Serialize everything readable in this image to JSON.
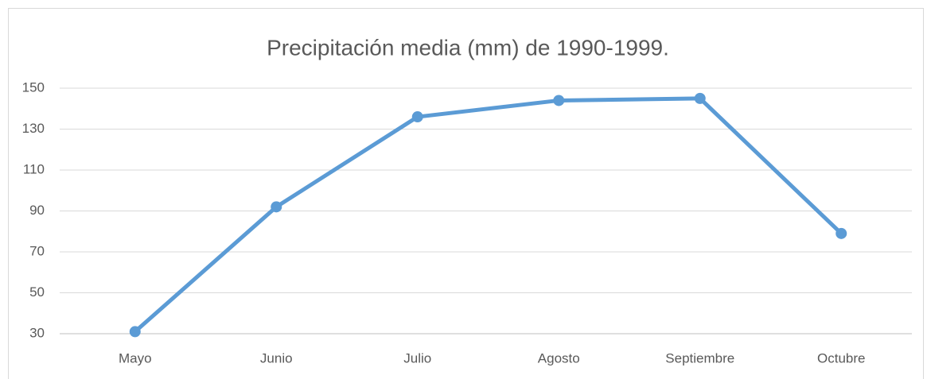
{
  "chart_data": {
    "type": "line",
    "title": "Precipitación media (mm) de 1990-1999.",
    "categories": [
      "Mayo",
      "Junio",
      "Julio",
      "Agosto",
      "Septiembre",
      "Octubre"
    ],
    "series": [
      {
        "name": "Precipitación",
        "color": "#5b9bd5",
        "values": [
          31,
          92,
          136,
          144,
          145,
          79
        ]
      }
    ],
    "ylim": [
      30,
      150
    ],
    "yticks": [
      30,
      50,
      70,
      90,
      110,
      130,
      150
    ],
    "grid": true
  }
}
